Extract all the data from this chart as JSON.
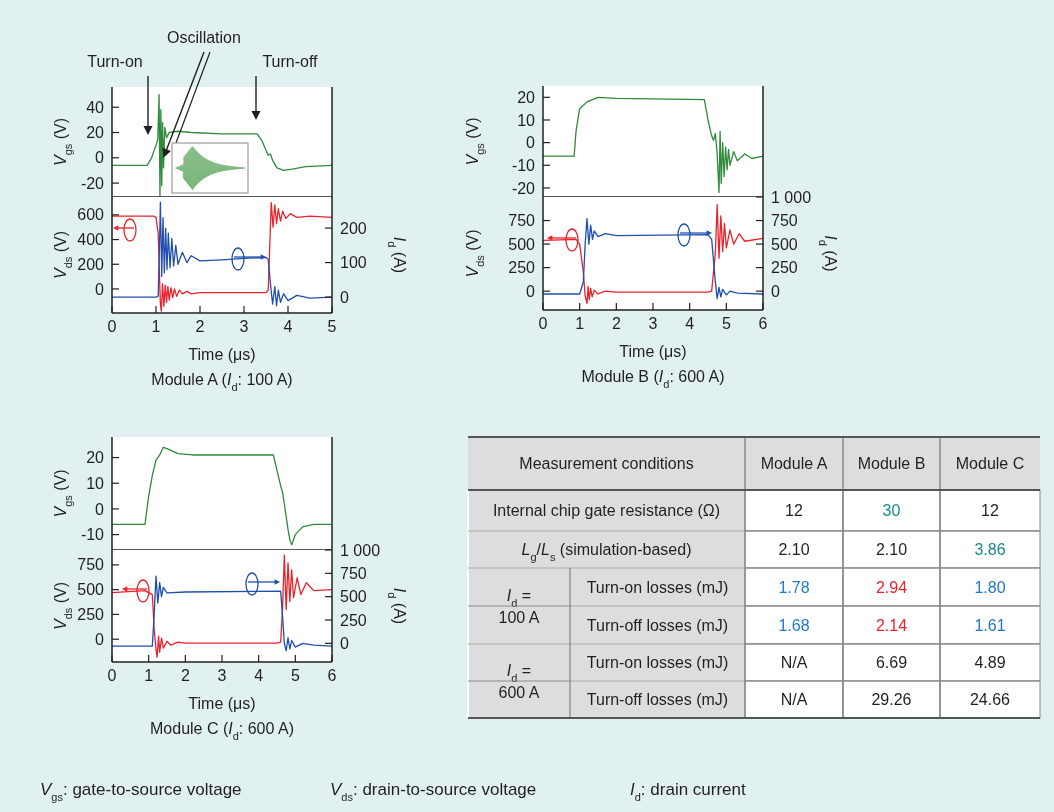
{
  "chart_data": [
    {
      "type": "line",
      "ylabel": "V$_{gs}$ (V)",
      "xlim": [
        0,
        5
      ],
      "ylim": [
        -31,
        56
      ],
      "yticks": [
        -20,
        0,
        20,
        40
      ],
      "tick_labels": "y",
      "annotations": [
        "Turn-on",
        {
          "text": "Oscillation",
          "x": 1.17,
          "y": 0
        },
        "Turn-off"
      ],
      "series": [
        {
          "color": "#2f8a3a",
          "x": [
            0,
            0.8,
            0.9,
            1.0,
            1.04,
            1.07,
            1.09,
            1.11,
            1.13,
            1.15,
            1.17,
            1.2,
            1.24,
            1.3,
            1.5,
            1.8,
            2.5,
            3.3,
            3.4,
            3.5,
            3.55,
            3.6,
            3.65,
            3.75,
            3.9,
            4.1,
            4.4,
            5
          ],
          "values": [
            -6,
            -6,
            0,
            10,
            14,
            50,
            -30,
            38,
            -22,
            28,
            -8,
            24,
            16,
            20,
            21,
            20,
            19,
            19,
            14,
            6,
            2,
            3,
            -2,
            -8,
            -10,
            -9,
            -7,
            -6
          ]
        }
      ]
    },
    {
      "type": "line",
      "title": "Module A (I$_{d}$: 100 A)",
      "xlabel": "Time (μs)",
      "ylabel": "V$_{ds}$ (V)",
      "y2label": "I$_{d}$ (A)",
      "xlim": [
        0,
        5
      ],
      "xticks": [
        0,
        1,
        2,
        3,
        4,
        5
      ],
      "ylim": [
        -195,
        745
      ],
      "yticks": [
        0,
        200,
        400,
        600
      ],
      "y2lim": [
        -46,
        290
      ],
      "y2ticks": [
        0,
        100,
        200
      ],
      "series": [
        {
          "color": "#e8232b",
          "x": [
            0,
            0.95,
            1.0,
            1.05,
            1.08,
            1.1,
            1.12,
            1.15,
            1.18,
            1.21,
            1.24,
            1.27,
            1.3,
            1.34,
            1.38,
            1.42,
            1.47,
            1.53,
            1.6,
            1.7,
            1.8,
            2.0,
            3.0,
            3.5,
            3.55,
            3.58,
            3.62,
            3.66,
            3.7,
            3.74,
            3.78,
            3.83,
            3.88,
            3.95,
            4.05,
            4.2,
            4.5,
            5
          ],
          "values": [
            590,
            590,
            580,
            450,
            100,
            -120,
            -180,
            40,
            -140,
            30,
            -110,
            20,
            -90,
            10,
            -70,
            0,
            -60,
            -10,
            -40,
            -20,
            -40,
            -30,
            -30,
            -30,
            -10,
            300,
            700,
            500,
            680,
            530,
            650,
            550,
            630,
            570,
            610,
            580,
            590,
            580
          ]
        },
        {
          "color": "#1f4fae",
          "axis": "y2",
          "x": [
            0,
            1.0,
            1.05,
            1.08,
            1.1,
            1.13,
            1.16,
            1.19,
            1.22,
            1.25,
            1.28,
            1.32,
            1.36,
            1.4,
            1.45,
            1.5,
            1.6,
            1.7,
            1.8,
            2.0,
            2.5,
            3.0,
            3.5,
            3.55,
            3.6,
            3.65,
            3.7,
            3.74,
            3.78,
            3.83,
            3.9,
            4.0,
            4.2,
            4.5,
            5
          ],
          "values": [
            0,
            0,
            3,
            150,
            275,
            60,
            230,
            70,
            200,
            80,
            185,
            85,
            170,
            90,
            150,
            95,
            130,
            100,
            120,
            105,
            108,
            112,
            115,
            110,
            40,
            -20,
            30,
            -25,
            20,
            -15,
            10,
            -10,
            5,
            -3,
            0
          ]
        }
      ]
    },
    {
      "type": "line",
      "ylabel": "V$_{gs}$ (V)",
      "xlim": [
        0,
        6
      ],
      "ylim": [
        -24,
        25
      ],
      "yticks": [
        -20,
        -10,
        0,
        10,
        20
      ],
      "tick_labels": "y",
      "series": [
        {
          "color": "#2f8a3a",
          "x": [
            0,
            0.85,
            0.9,
            1.0,
            1.2,
            1.5,
            2,
            4.4,
            4.5,
            4.6,
            4.65,
            4.7,
            4.75,
            4.8,
            4.83,
            4.86,
            4.9,
            4.94,
            4.98,
            5.02,
            5.06,
            5.1,
            5.2,
            5.3,
            5.5,
            5.7,
            6
          ],
          "values": [
            -6,
            -6,
            5,
            15,
            18,
            20,
            19.5,
            19,
            10,
            3,
            1,
            4,
            -5,
            -22,
            5,
            -18,
            0,
            -15,
            -2,
            -12,
            -3,
            -10,
            -4,
            -8,
            -5,
            -7,
            -6
          ]
        }
      ]
    },
    {
      "type": "line",
      "title": "Module B (I$_{d}$: 600 A)",
      "xlabel": "Time (μs)",
      "ylabel": "V$_{ds}$ (V)",
      "y2label": "I$_{d}$ (A)",
      "xlim": [
        0,
        6
      ],
      "xticks": [
        0,
        1,
        2,
        3,
        4,
        5,
        6
      ],
      "ylim": [
        -200,
        1000
      ],
      "yticks": [
        0,
        250,
        500,
        750
      ],
      "y2lim": [
        -200,
        1000
      ],
      "y2ticks": [
        0,
        250,
        500,
        750,
        {
          "value": 1000,
          "label": "1 000"
        }
      ],
      "series": [
        {
          "color": "#e8232b",
          "x": [
            0,
            0.9,
            1.0,
            1.1,
            1.15,
            1.2,
            1.23,
            1.26,
            1.3,
            1.34,
            1.4,
            1.5,
            1.7,
            2,
            4.5,
            4.6,
            4.7,
            4.75,
            4.8,
            4.85,
            4.9,
            4.95,
            5.0,
            5.1,
            5.2,
            5.35,
            5.5,
            6
          ],
          "values": [
            540,
            550,
            500,
            200,
            -50,
            -130,
            50,
            -90,
            30,
            -60,
            10,
            -30,
            0,
            -10,
            -10,
            0,
            400,
            920,
            350,
            800,
            420,
            720,
            460,
            650,
            500,
            610,
            530,
            560
          ]
        },
        {
          "color": "#1f4fae",
          "axis": "y2",
          "x": [
            0,
            1.0,
            1.1,
            1.15,
            1.2,
            1.25,
            1.3,
            1.35,
            1.4,
            1.5,
            1.7,
            2,
            4.5,
            4.6,
            4.7,
            4.75,
            4.8,
            4.85,
            4.9,
            5.0,
            5.1,
            5.3,
            6
          ],
          "values": [
            -30,
            -30,
            100,
            500,
            770,
            500,
            700,
            550,
            640,
            580,
            610,
            590,
            600,
            550,
            100,
            -80,
            40,
            -60,
            20,
            -40,
            0,
            -20,
            -30
          ]
        }
      ]
    },
    {
      "type": "line",
      "ylabel": "V$_{gs}$ (V)",
      "xlim": [
        0,
        6
      ],
      "ylim": [
        -16,
        28
      ],
      "yticks": [
        -10,
        0,
        10,
        20
      ],
      "tick_labels": "y",
      "series": [
        {
          "color": "#2f8a3a",
          "x": [
            0,
            0.9,
            1.0,
            1.1,
            1.2,
            1.3,
            1.4,
            1.5,
            1.8,
            2.2,
            4.4,
            4.5,
            4.6,
            4.65,
            4.7,
            4.8,
            4.85,
            4.9,
            5.0,
            5.2,
            5.5,
            6
          ],
          "values": [
            -6,
            -6,
            5,
            13,
            19,
            21,
            24,
            23.5,
            21.5,
            21,
            21,
            15,
            9,
            6.5,
            2,
            -8,
            -12,
            -14,
            -10,
            -7,
            -6,
            -6
          ]
        }
      ]
    },
    {
      "type": "line",
      "title": "Module C (I$_{d}$: 600 A)",
      "xlabel": "Time (μs)",
      "ylabel": "V$_{ds}$ (V)",
      "y2label": "I$_{d}$ (A)",
      "xlim": [
        0,
        6
      ],
      "xticks": [
        0,
        1,
        2,
        3,
        4,
        5,
        6
      ],
      "ylim": [
        -230,
        900
      ],
      "yticks": [
        0,
        250,
        500,
        750
      ],
      "y2lim": [
        -200,
        1000
      ],
      "y2ticks": [
        0,
        250,
        500,
        750,
        {
          "value": 1000,
          "label": "1 000"
        }
      ],
      "series": [
        {
          "color": "#e8232b",
          "x": [
            0,
            0.9,
            1.1,
            1.15,
            1.2,
            1.23,
            1.27,
            1.3,
            1.35,
            1.4,
            1.5,
            1.6,
            1.8,
            2,
            4.5,
            4.6,
            4.65,
            4.7,
            4.75,
            4.8,
            4.85,
            4.9,
            4.95,
            5.05,
            5.15,
            5.3,
            5.5,
            6
          ],
          "values": [
            470,
            490,
            450,
            100,
            -100,
            -180,
            30,
            -130,
            10,
            -90,
            -20,
            -60,
            -30,
            -40,
            -40,
            -30,
            300,
            850,
            300,
            770,
            380,
            700,
            420,
            620,
            450,
            570,
            490,
            500
          ]
        },
        {
          "color": "#1f4fae",
          "axis": "y2",
          "x": [
            0,
            1.1,
            1.15,
            1.2,
            1.25,
            1.3,
            1.35,
            1.4,
            1.5,
            2,
            4.6,
            4.65,
            4.7,
            4.75,
            4.8,
            4.85,
            4.9,
            5.0,
            5.2,
            5.5,
            6
          ],
          "values": [
            -30,
            -30,
            300,
            720,
            430,
            650,
            500,
            600,
            540,
            550,
            560,
            300,
            0,
            -80,
            60,
            -60,
            30,
            -40,
            0,
            -20,
            -30
          ]
        }
      ]
    },
    {
      "type": "other",
      "categories": [
        "Measurement conditions",
        "Module A",
        "Module B",
        "Module C"
      ],
      "y_categories": [
        "Internal chip gate resistance (Ω)",
        "L$_{g}$/L$_{s}$ (simulation-based)",
        "I$_{d}$ =\n100 A",
        null,
        "I$_{d}$ =\n600 A",
        null
      ],
      "y2_categories": [
        null,
        null,
        "Turn-on losses (mJ)",
        "Turn-off losses (mJ)",
        "Turn-on losses (mJ)",
        "Turn-off losses (mJ)"
      ],
      "cell_labels": [
        [
          "12",
          "30",
          "12"
        ],
        [
          "2.10",
          "2.10",
          "3.86"
        ],
        [
          "1.78",
          "2.94",
          "1.80"
        ],
        [
          "1.68",
          "2.14",
          "1.61"
        ],
        [
          "N/A",
          "6.69",
          "4.89"
        ],
        [
          "N/A",
          "29.26",
          "24.66"
        ]
      ],
      "colors": [
        [
          "#231f20",
          "#148a8c",
          "#231f20"
        ],
        [
          "#231f20",
          "#231f20",
          "#148a8c"
        ],
        [
          "#1f78c8",
          "#e8232b",
          "#1f78c8"
        ],
        [
          "#1f78c8",
          "#e8232b",
          "#1f78c8"
        ],
        [
          "#231f20",
          "#231f20",
          "#231f20"
        ],
        [
          "#231f20",
          "#231f20",
          "#231f20"
        ]
      ],
      "annotations": [
        "V$_{gs}$: gate-to-source voltage",
        "V$_{ds}$: drain-to-source voltage",
        "I$_{d}$: drain current"
      ]
    }
  ]
}
